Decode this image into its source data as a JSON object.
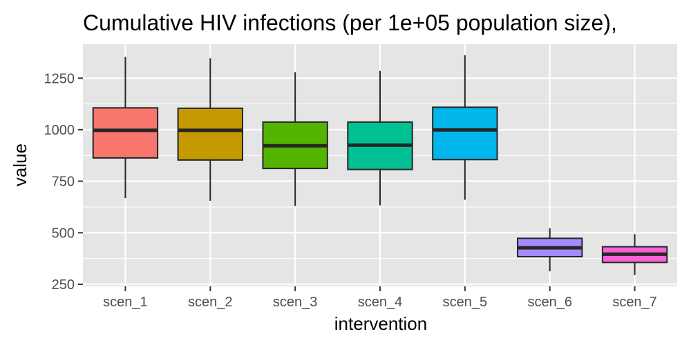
{
  "chart_data": {
    "type": "boxplot",
    "title": "Cumulative HIV infections (per 1e+05 population size),",
    "xlabel": "intervention",
    "ylabel": "value",
    "ylim": [
      240,
      1415
    ],
    "y_ticks": [
      250,
      500,
      750,
      1000,
      1250
    ],
    "y_tick_labels": [
      "250",
      "500",
      "750",
      "1000",
      "1250"
    ],
    "grid": true,
    "legend": "none",
    "panel_background": "#e5e5e5",
    "grid_color": "#ffffff",
    "box_outline_color": "#262626",
    "categories": [
      "scen_1",
      "scen_2",
      "scen_3",
      "scen_4",
      "scen_5",
      "scen_6",
      "scen_7"
    ],
    "boxes": [
      {
        "category": "scen_1",
        "lower_whisker": 668,
        "q1": 863,
        "median": 997,
        "q3": 1106,
        "upper_whisker": 1353,
        "color": "#f8766d"
      },
      {
        "category": "scen_2",
        "lower_whisker": 655,
        "q1": 853,
        "median": 997,
        "q3": 1104,
        "upper_whisker": 1347,
        "color": "#c49a00"
      },
      {
        "category": "scen_3",
        "lower_whisker": 630,
        "q1": 812,
        "median": 922,
        "q3": 1037,
        "upper_whisker": 1279,
        "color": "#53b400"
      },
      {
        "category": "scen_4",
        "lower_whisker": 633,
        "q1": 807,
        "median": 925,
        "q3": 1037,
        "upper_whisker": 1285,
        "color": "#00c094"
      },
      {
        "category": "scen_5",
        "lower_whisker": 660,
        "q1": 855,
        "median": 999,
        "q3": 1109,
        "upper_whisker": 1361,
        "color": "#00b6eb"
      },
      {
        "category": "scen_6",
        "lower_whisker": 313,
        "q1": 384,
        "median": 427,
        "q3": 473,
        "upper_whisker": 522,
        "color": "#a58aff"
      },
      {
        "category": "scen_7",
        "lower_whisker": 295,
        "q1": 356,
        "median": 396,
        "q3": 432,
        "upper_whisker": 493,
        "color": "#fb61d7"
      }
    ]
  }
}
